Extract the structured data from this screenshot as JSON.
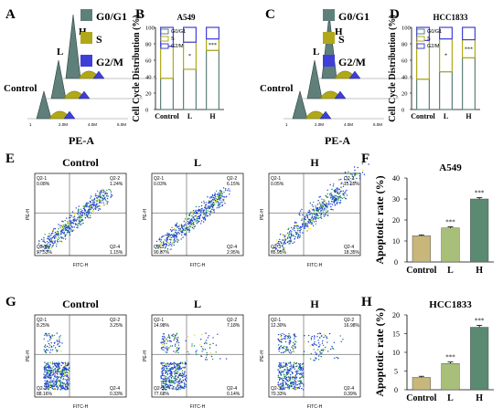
{
  "panel_letters": [
    "A",
    "B",
    "C",
    "D",
    "E",
    "F",
    "G",
    "H"
  ],
  "cell_cycle_legend": {
    "items": [
      {
        "label": "G0/G1",
        "color": "#5f7f7a"
      },
      {
        "label": "S",
        "color": "#b0a818"
      },
      {
        "label": "G2/M",
        "color": "#3f3fd8"
      }
    ]
  },
  "histogram_labels": {
    "top_label": "H",
    "mid_label": "L",
    "bottom_label": "Control",
    "xaxis": "PE-A",
    "ticks": [
      "1",
      "2.0M",
      "4.0M",
      "6.0M"
    ]
  },
  "flow_plots": {
    "e_row_titles": [
      "Control",
      "L",
      "H"
    ],
    "g_row_titles": [
      "Control",
      "L",
      "H"
    ],
    "e_quadrants": [
      {
        "q1": "Q2-1\n0.08%",
        "q2": "Q2-2\n1.24%",
        "q3": "Q2-3\n97.53%",
        "q4": "Q2-4\n1.15%"
      },
      {
        "q1": "Q2-1\n0.03%",
        "q2": "Q2-2\n6.15%",
        "q3": "Q2-3\n90.87%",
        "q4": "Q2-4\n2.95%"
      },
      {
        "q1": "Q2-1\n0.05%",
        "q2": "Q2-2\n15.65%",
        "q3": "Q2-3\n65.95%",
        "q4": "Q2-4\n18.35%"
      }
    ],
    "g_quadrants": [
      {
        "q1": "Q2-1\n8.25%",
        "q2": "Q2-2\n3.25%",
        "q3": "Q2-3\n88.16%",
        "q4": "Q2-4\n0.33%"
      },
      {
        "q1": "Q2-1\n14.98%",
        "q2": "Q2-2\n7.18%",
        "q3": "Q2-3\n77.68%",
        "q4": "Q2-4\n0.14%"
      },
      {
        "q1": "Q2-1\n12.30%",
        "q2": "Q2-2\n16.98%",
        "q3": "Q2-3\n70.33%",
        "q4": "Q2-4\n0.39%"
      }
    ],
    "e_xaxis": "FITC-H",
    "e_yaxis": "PE-H",
    "g_xaxis": "FITC-H",
    "g_yaxis": "PE-H"
  },
  "chart_data": [
    {
      "id": "B",
      "type": "bar",
      "stacked": true,
      "title": "A549",
      "ylabel": "Cell Cycle Distribution (%)",
      "categories": [
        "Control",
        "L",
        "H"
      ],
      "ylim": [
        0,
        100
      ],
      "yticks": [
        "0",
        "20",
        "40",
        "60",
        "80",
        "100"
      ],
      "series": [
        {
          "name": "G0/G1",
          "values": [
            38,
            49,
            72
          ],
          "color": "#ffffff"
        },
        {
          "name": "S",
          "values": [
            39,
            33,
            14
          ],
          "color": "#ffffff"
        },
        {
          "name": "G2/M",
          "values": [
            23,
            18,
            14
          ],
          "color": "#ffffff"
        }
      ],
      "annotations": [
        "",
        "*",
        "***"
      ]
    },
    {
      "id": "D",
      "type": "bar",
      "stacked": true,
      "title": "HCC1833",
      "ylabel": "Cell Cycle Distribution (%)",
      "categories": [
        "Control",
        "L",
        "H"
      ],
      "ylim": [
        0,
        100
      ],
      "yticks": [
        "0",
        "20",
        "40",
        "60",
        "80",
        "100"
      ],
      "series": [
        {
          "name": "G0/G1",
          "values": [
            37,
            46,
            63
          ],
          "color": "#ffffff"
        },
        {
          "name": "S",
          "values": [
            47,
            40,
            22
          ],
          "color": "#ffffff"
        },
        {
          "name": "G2/M",
          "values": [
            16,
            14,
            15
          ],
          "color": "#ffffff"
        }
      ],
      "annotations": [
        "",
        "*",
        "***"
      ]
    },
    {
      "id": "F",
      "type": "bar",
      "title": "A549",
      "ylabel": "Apoptotic rate (%)",
      "categories": [
        "Control",
        "L",
        "H"
      ],
      "values": [
        12.5,
        16.2,
        30.0
      ],
      "errors": [
        0.4,
        0.5,
        0.6
      ],
      "colors": [
        "#c9b67a",
        "#a8bf7a",
        "#5a8a72"
      ],
      "ylim": [
        0,
        40
      ],
      "yticks": [
        "0",
        "10",
        "20",
        "30",
        "40"
      ],
      "annotations": [
        "",
        "***",
        "***"
      ]
    },
    {
      "id": "H",
      "type": "bar",
      "title": "HCC1833",
      "ylabel": "Apoptotic rate (%)",
      "categories": [
        "Control",
        "L",
        "H"
      ],
      "values": [
        3.3,
        7.0,
        16.7
      ],
      "errors": [
        0.3,
        0.4,
        0.5
      ],
      "colors": [
        "#c9b67a",
        "#a8bf7a",
        "#5a8a72"
      ],
      "ylim": [
        0,
        20
      ],
      "yticks": [
        "0",
        "5",
        "10",
        "15",
        "20"
      ],
      "annotations": [
        "",
        "***",
        "***"
      ]
    }
  ]
}
